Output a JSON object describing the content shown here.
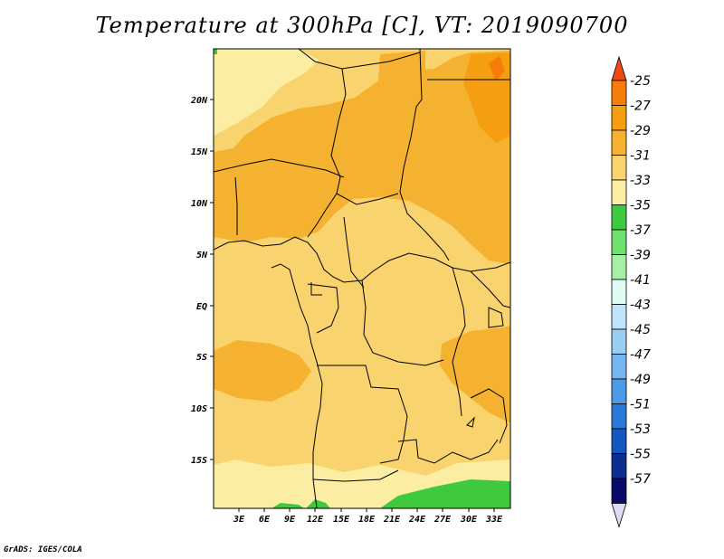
{
  "title": "Temperature at 300hPa [C], VT: 2019090700",
  "footer": "GrADS: IGES/COLA",
  "map": {
    "lat_ticks": [
      "20N",
      "15N",
      "10N",
      "5N",
      "EQ",
      "5S",
      "10S",
      "15S"
    ],
    "lon_ticks": [
      "3E",
      "6E",
      "9E",
      "12E",
      "15E",
      "18E",
      "21E",
      "24E",
      "27E",
      "30E",
      "33E"
    ]
  },
  "colorbar": {
    "labels": [
      "-25",
      "-27",
      "-29",
      "-31",
      "-33",
      "-35",
      "-37",
      "-39",
      "-41",
      "-43",
      "-45",
      "-47",
      "-49",
      "-51",
      "-53",
      "-55",
      "-57"
    ],
    "colors": [
      "#f04a0c",
      "#f87c0a",
      "#f59e12",
      "#f5b231",
      "#f8d36e",
      "#fbeda2",
      "#3fc93f",
      "#6fe06f",
      "#a6f0a6",
      "#dcfbf2",
      "#bfe3fa",
      "#99cdf3",
      "#74b6ee",
      "#4d9ae8",
      "#2b7ad9",
      "#1656c2",
      "#0c2f8f",
      "#0a0a6a",
      "#dcdcf4"
    ],
    "color_order": "top to bottom"
  }
}
